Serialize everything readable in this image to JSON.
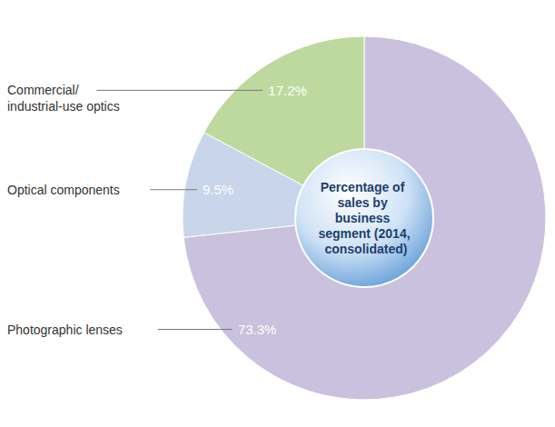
{
  "chart_data": {
    "type": "pie",
    "title": "Percentage of sales by business segment (2014, consolidated)",
    "categories": [
      "Photographic lenses",
      "Optical components",
      "Commercial/industrial-use optics"
    ],
    "values": [
      73.3,
      9.5,
      17.2
    ],
    "value_labels": [
      "73.3%",
      "9.5%",
      "17.2%"
    ],
    "colors": [
      "#c9c1dd",
      "#c8d5ea",
      "#bdd99e"
    ],
    "data_labels": true
  }
}
